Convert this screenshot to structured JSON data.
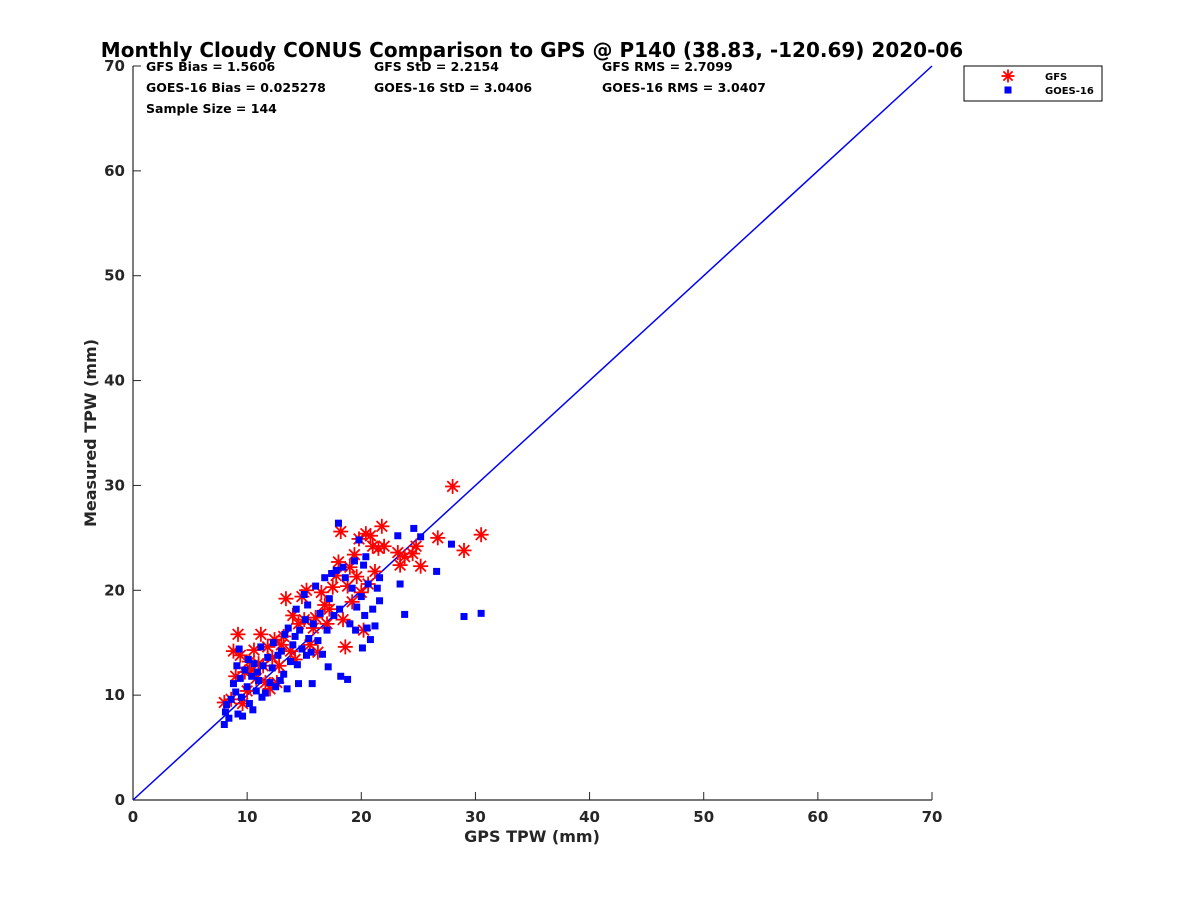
{
  "chart_data": {
    "type": "scatter",
    "title": "Monthly Cloudy CONUS Comparison to GPS @ P140 (38.83, -120.69) 2020-06",
    "xlabel": "GPS TPW (mm)",
    "ylabel": "Measured TPW (mm)",
    "xlim": [
      0,
      70
    ],
    "ylim": [
      0,
      70
    ],
    "xticks": [
      0,
      10,
      20,
      30,
      40,
      50,
      60,
      70
    ],
    "yticks": [
      0,
      10,
      20,
      30,
      40,
      50,
      60,
      70
    ],
    "grid": false,
    "legend_position": "top-right, outside plot",
    "stats": [
      [
        "GFS Bias = 1.5606",
        "GFS StD = 2.2154",
        "GFS RMS = 2.7099"
      ],
      [
        "GOES-16 Bias = 0.025278",
        "GOES-16 StD = 3.0406",
        "GOES-16 RMS = 3.0407"
      ],
      [
        "Sample Size = 144"
      ]
    ],
    "reference_line": {
      "x": [
        0,
        70
      ],
      "y": [
        0,
        70
      ],
      "color": "#0000ff"
    },
    "series": [
      {
        "name": "GFS",
        "marker": "asterisk",
        "color": "#ff0000",
        "points": [
          [
            8,
            9.3
          ],
          [
            8.6,
            9.6
          ],
          [
            8.8,
            14.2
          ],
          [
            9.0,
            11.8
          ],
          [
            9.2,
            15.8
          ],
          [
            9.4,
            13.8
          ],
          [
            9.6,
            9.2
          ],
          [
            9.8,
            12.2
          ],
          [
            10.0,
            10.4
          ],
          [
            10.2,
            13.2
          ],
          [
            10.4,
            12.4
          ],
          [
            10.6,
            14.3
          ],
          [
            10.8,
            11.6
          ],
          [
            11.0,
            13.0
          ],
          [
            11.2,
            15.8
          ],
          [
            11.4,
            12.8
          ],
          [
            11.6,
            11.2
          ],
          [
            11.8,
            14.6
          ],
          [
            12.0,
            10.6
          ],
          [
            12.2,
            13.6
          ],
          [
            12.4,
            15.3
          ],
          [
            12.6,
            11.2
          ],
          [
            12.8,
            12.8
          ],
          [
            13.0,
            14.8
          ],
          [
            13.2,
            15.6
          ],
          [
            13.4,
            19.2
          ],
          [
            13.8,
            14.2
          ],
          [
            14.0,
            17.6
          ],
          [
            14.2,
            13.4
          ],
          [
            14.5,
            16.8
          ],
          [
            14.8,
            19.4
          ],
          [
            15.0,
            17.2
          ],
          [
            15.2,
            20.0
          ],
          [
            15.5,
            14.8
          ],
          [
            15.8,
            16.4
          ],
          [
            16.0,
            17.4
          ],
          [
            16.2,
            14.1
          ],
          [
            16.5,
            19.8
          ],
          [
            16.8,
            18.6
          ],
          [
            17.0,
            16.8
          ],
          [
            17.2,
            18.2
          ],
          [
            17.5,
            20.3
          ],
          [
            17.8,
            21.4
          ],
          [
            18.0,
            22.7
          ],
          [
            18.2,
            25.6
          ],
          [
            18.4,
            17.2
          ],
          [
            18.6,
            14.6
          ],
          [
            18.8,
            20.4
          ],
          [
            19.0,
            22.2
          ],
          [
            19.2,
            18.9
          ],
          [
            19.4,
            23.4
          ],
          [
            19.6,
            21.3
          ],
          [
            19.8,
            24.9
          ],
          [
            20.0,
            19.8
          ],
          [
            20.2,
            16.2
          ],
          [
            20.4,
            25.4
          ],
          [
            20.6,
            20.6
          ],
          [
            20.8,
            25.2
          ],
          [
            21.0,
            24.2
          ],
          [
            21.2,
            21.8
          ],
          [
            21.5,
            24.0
          ],
          [
            21.8,
            26.1
          ],
          [
            22.0,
            24.2
          ],
          [
            23.2,
            23.6
          ],
          [
            23.4,
            22.4
          ],
          [
            23.8,
            23.2
          ],
          [
            24.5,
            23.5
          ],
          [
            24.8,
            24.2
          ],
          [
            25.2,
            22.3
          ],
          [
            26.7,
            25.0
          ],
          [
            28.0,
            29.9
          ],
          [
            29.0,
            23.8
          ],
          [
            30.5,
            25.3
          ]
        ]
      },
      {
        "name": "GOES-16",
        "marker": "square",
        "color": "#0000ff",
        "points": [
          [
            8.0,
            7.2
          ],
          [
            8.1,
            8.4
          ],
          [
            8.2,
            9.1
          ],
          [
            8.4,
            7.8
          ],
          [
            8.6,
            9.6
          ],
          [
            8.8,
            11.1
          ],
          [
            9.0,
            10.3
          ],
          [
            9.1,
            12.8
          ],
          [
            9.2,
            8.2
          ],
          [
            9.3,
            14.4
          ],
          [
            9.4,
            11.6
          ],
          [
            9.5,
            9.8
          ],
          [
            9.6,
            8.0
          ],
          [
            9.8,
            12.4
          ],
          [
            10.0,
            10.8
          ],
          [
            10.1,
            13.4
          ],
          [
            10.2,
            9.2
          ],
          [
            10.4,
            11.8
          ],
          [
            10.5,
            8.6
          ],
          [
            10.6,
            13.0
          ],
          [
            10.8,
            10.4
          ],
          [
            10.9,
            12.2
          ],
          [
            11.0,
            11.4
          ],
          [
            11.2,
            14.6
          ],
          [
            11.3,
            9.8
          ],
          [
            11.4,
            12.8
          ],
          [
            11.6,
            10.2
          ],
          [
            11.8,
            13.6
          ],
          [
            12.0,
            11.2
          ],
          [
            12.2,
            12.6
          ],
          [
            12.3,
            15.0
          ],
          [
            12.5,
            10.8
          ],
          [
            12.7,
            13.8
          ],
          [
            12.9,
            11.4
          ],
          [
            13.0,
            14.2
          ],
          [
            13.2,
            12.0
          ],
          [
            13.3,
            15.8
          ],
          [
            13.5,
            10.6
          ],
          [
            13.6,
            16.4
          ],
          [
            13.8,
            13.2
          ],
          [
            14.0,
            14.8
          ],
          [
            14.2,
            15.6
          ],
          [
            14.3,
            18.2
          ],
          [
            14.4,
            12.9
          ],
          [
            14.5,
            11.1
          ],
          [
            14.6,
            16.2
          ],
          [
            14.8,
            14.4
          ],
          [
            15.0,
            19.6
          ],
          [
            15.1,
            17.2
          ],
          [
            15.2,
            13.8
          ],
          [
            15.3,
            18.6
          ],
          [
            15.4,
            15.4
          ],
          [
            15.6,
            14.1
          ],
          [
            15.7,
            11.1
          ],
          [
            15.8,
            16.8
          ],
          [
            16.0,
            20.4
          ],
          [
            16.2,
            15.2
          ],
          [
            16.4,
            17.8
          ],
          [
            16.6,
            13.9
          ],
          [
            16.8,
            21.2
          ],
          [
            17.0,
            16.2
          ],
          [
            17.1,
            12.7
          ],
          [
            17.2,
            19.2
          ],
          [
            17.4,
            21.6
          ],
          [
            17.6,
            17.6
          ],
          [
            17.8,
            21.9
          ],
          [
            18.0,
            26.4
          ],
          [
            18.1,
            18.2
          ],
          [
            18.2,
            11.8
          ],
          [
            18.4,
            22.2
          ],
          [
            18.6,
            21.2
          ],
          [
            18.8,
            11.5
          ],
          [
            19.0,
            16.8
          ],
          [
            19.2,
            20.2
          ],
          [
            19.4,
            22.8
          ],
          [
            19.5,
            16.2
          ],
          [
            19.6,
            18.4
          ],
          [
            19.8,
            24.8
          ],
          [
            20.0,
            19.4
          ],
          [
            20.1,
            14.5
          ],
          [
            20.2,
            22.4
          ],
          [
            20.3,
            17.6
          ],
          [
            20.4,
            23.2
          ],
          [
            20.5,
            16.4
          ],
          [
            20.6,
            20.6
          ],
          [
            20.8,
            15.3
          ],
          [
            21.0,
            18.2
          ],
          [
            21.2,
            16.6
          ],
          [
            21.4,
            20.2
          ],
          [
            21.6,
            21.2
          ],
          [
            21.6,
            19.0
          ],
          [
            23.2,
            25.2
          ],
          [
            23.4,
            20.6
          ],
          [
            23.8,
            17.7
          ],
          [
            24.6,
            25.9
          ],
          [
            25.2,
            25.1
          ],
          [
            26.6,
            21.8
          ],
          [
            27.9,
            24.4
          ],
          [
            29.0,
            17.5
          ],
          [
            30.5,
            17.8
          ]
        ]
      }
    ]
  }
}
